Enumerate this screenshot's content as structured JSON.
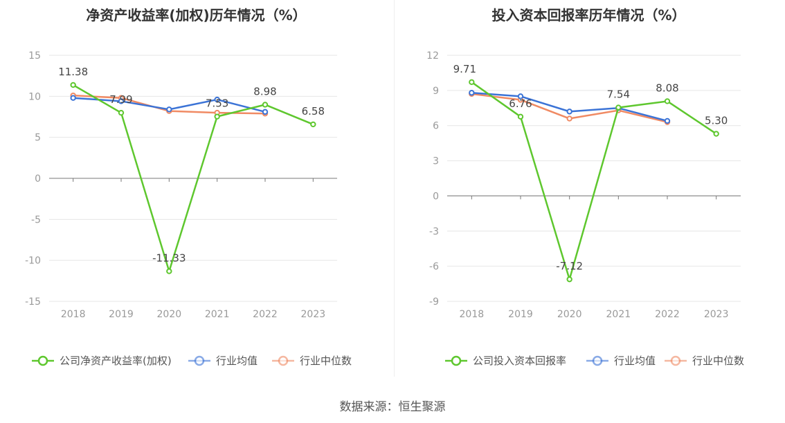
{
  "source": "数据来源：恒生聚源",
  "colors": {
    "company": "#5ec72e",
    "avg": "#3b73d6",
    "median": "#f08a63"
  },
  "chart_data": [
    {
      "type": "line",
      "title": "净资产收益率(加权)历年情况（%）",
      "categories": [
        "2018",
        "2019",
        "2020",
        "2021",
        "2022",
        "2023"
      ],
      "ylim": [
        -15,
        15
      ],
      "yticks": [
        15,
        10,
        5,
        0,
        -5,
        -10,
        -15
      ],
      "grid": true,
      "legend_position": "bottom",
      "series": [
        {
          "name": "公司净资产收益率(加权)",
          "values": [
            11.38,
            7.99,
            -11.33,
            7.53,
            8.98,
            6.58
          ],
          "labels": [
            "11.38",
            "7.99",
            "-11.33",
            "7.53",
            "8.98",
            "6.58"
          ]
        },
        {
          "name": "行业均值",
          "values": [
            9.8,
            9.4,
            8.4,
            9.6,
            8.1,
            null
          ]
        },
        {
          "name": "行业中位数",
          "values": [
            10.1,
            9.8,
            8.2,
            8.0,
            7.9,
            null
          ]
        }
      ]
    },
    {
      "type": "line",
      "title": "投入资本回报率历年情况（%）",
      "categories": [
        "2018",
        "2019",
        "2020",
        "2021",
        "2022",
        "2023"
      ],
      "ylim": [
        -9,
        12
      ],
      "yticks": [
        12,
        9,
        6,
        3,
        0,
        -3,
        -6,
        -9
      ],
      "grid": true,
      "legend_position": "bottom",
      "series": [
        {
          "name": "公司投入资本回报率",
          "values": [
            9.71,
            6.76,
            -7.12,
            7.54,
            8.08,
            5.3
          ],
          "labels": [
            "9.71",
            "6.76",
            "-7.12",
            "7.54",
            "8.08",
            "5.30"
          ]
        },
        {
          "name": "行业均值",
          "values": [
            8.8,
            8.5,
            7.2,
            7.5,
            6.4,
            null
          ]
        },
        {
          "name": "行业中位数",
          "values": [
            8.7,
            8.2,
            6.6,
            7.3,
            6.3,
            null
          ]
        }
      ]
    }
  ]
}
